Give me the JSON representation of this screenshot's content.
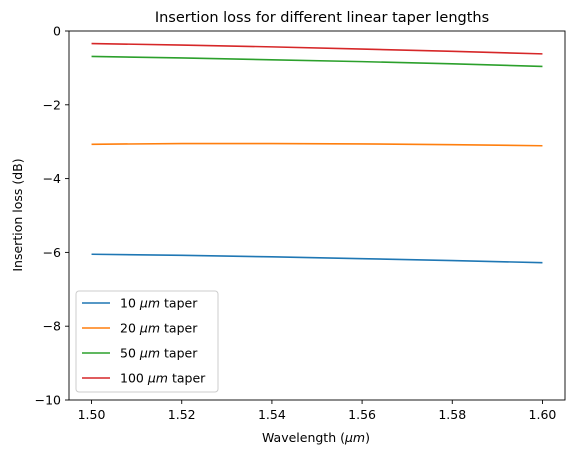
{
  "chart_data": {
    "type": "line",
    "title": "Insertion loss for different linear taper lengths",
    "xlabel_prefix": "Wavelength (",
    "xlabel_unit": "μm",
    "xlabel_suffix": ")",
    "ylabel": "Insertion loss (dB)",
    "xlim": [
      1.495,
      1.605
    ],
    "ylim": [
      -10,
      0
    ],
    "xticks": [
      1.5,
      1.52,
      1.54,
      1.56,
      1.58,
      1.6
    ],
    "xtick_labels": [
      "1.50",
      "1.52",
      "1.54",
      "1.56",
      "1.58",
      "1.60"
    ],
    "yticks": [
      0,
      -2,
      -4,
      -6,
      -8,
      -10
    ],
    "ytick_labels": [
      "0",
      "−2",
      "−4",
      "−6",
      "−8",
      "−10"
    ],
    "grid": false,
    "legend_position": "lower-left",
    "x": [
      1.5,
      1.52,
      1.54,
      1.56,
      1.58,
      1.6
    ],
    "series": [
      {
        "legend_number": "10",
        "legend_unit": "μm",
        "legend_suffix": "taper",
        "color": "#1f77b4",
        "values": [
          -6.05,
          -6.08,
          -6.12,
          -6.17,
          -6.22,
          -6.28
        ]
      },
      {
        "legend_number": "20",
        "legend_unit": "μm",
        "legend_suffix": "taper",
        "color": "#ff7f0e",
        "values": [
          -3.07,
          -3.05,
          -3.05,
          -3.06,
          -3.08,
          -3.11
        ]
      },
      {
        "legend_number": "50",
        "legend_unit": "μm",
        "legend_suffix": "taper",
        "color": "#2ca02c",
        "values": [
          -0.69,
          -0.73,
          -0.78,
          -0.83,
          -0.89,
          -0.96
        ]
      },
      {
        "legend_number": "100",
        "legend_unit": "μm",
        "legend_suffix": "taper",
        "color": "#d62728",
        "values": [
          -0.34,
          -0.38,
          -0.43,
          -0.49,
          -0.55,
          -0.62
        ]
      }
    ]
  }
}
